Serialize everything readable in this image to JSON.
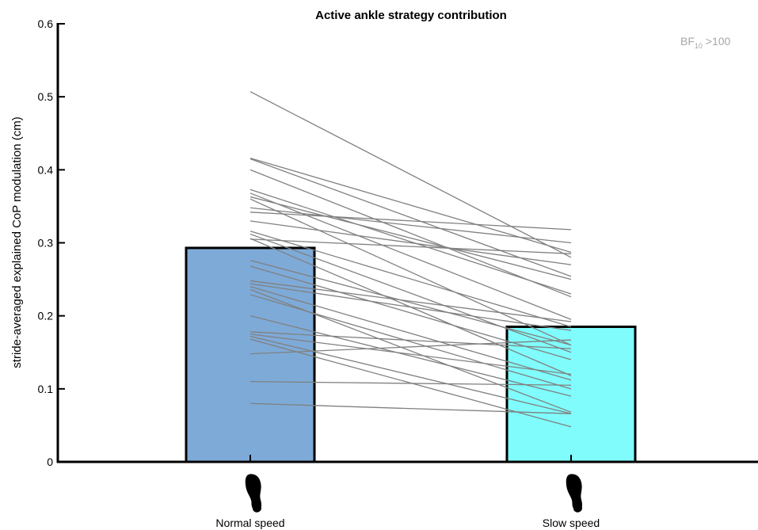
{
  "chart_data": {
    "type": "bar",
    "title": "Active ankle strategy contribution",
    "xlabel": "",
    "ylabel": "stride-averaged explained CoP modulation (cm)",
    "ylim": [
      0,
      0.6
    ],
    "yticks": [
      "0",
      "0.1",
      "0.2",
      "0.3",
      "0.4",
      "0.5",
      "0.6"
    ],
    "categories": [
      "Normal speed",
      "Slow speed"
    ],
    "values": [
      0.293,
      0.185
    ],
    "bar_colors": [
      "#7eaad8",
      "#80fcfc"
    ],
    "line_color": "#808080",
    "grid": false,
    "annotation": {
      "base": "BF",
      "sub": "10",
      "rest": " >100"
    },
    "category_icons": [
      "footprint-icon",
      "footprint-icon"
    ],
    "paired_lines": [
      [
        0.507,
        0.28
      ],
      [
        0.416,
        0.287
      ],
      [
        0.415,
        0.254
      ],
      [
        0.4,
        0.226
      ],
      [
        0.373,
        0.23
      ],
      [
        0.368,
        0.195
      ],
      [
        0.363,
        0.25
      ],
      [
        0.36,
        0.16
      ],
      [
        0.348,
        0.3
      ],
      [
        0.342,
        0.318
      ],
      [
        0.33,
        0.27
      ],
      [
        0.316,
        0.185
      ],
      [
        0.312,
        0.15
      ],
      [
        0.306,
        0.118
      ],
      [
        0.305,
        0.285
      ],
      [
        0.276,
        0.16
      ],
      [
        0.268,
        0.14
      ],
      [
        0.248,
        0.192
      ],
      [
        0.244,
        0.18
      ],
      [
        0.24,
        0.112
      ],
      [
        0.236,
        0.068
      ],
      [
        0.229,
        0.1
      ],
      [
        0.2,
        0.09
      ],
      [
        0.178,
        0.155
      ],
      [
        0.175,
        0.12
      ],
      [
        0.172,
        0.066
      ],
      [
        0.168,
        0.048
      ],
      [
        0.148,
        0.167
      ],
      [
        0.11,
        0.105
      ],
      [
        0.08,
        0.066
      ]
    ]
  }
}
